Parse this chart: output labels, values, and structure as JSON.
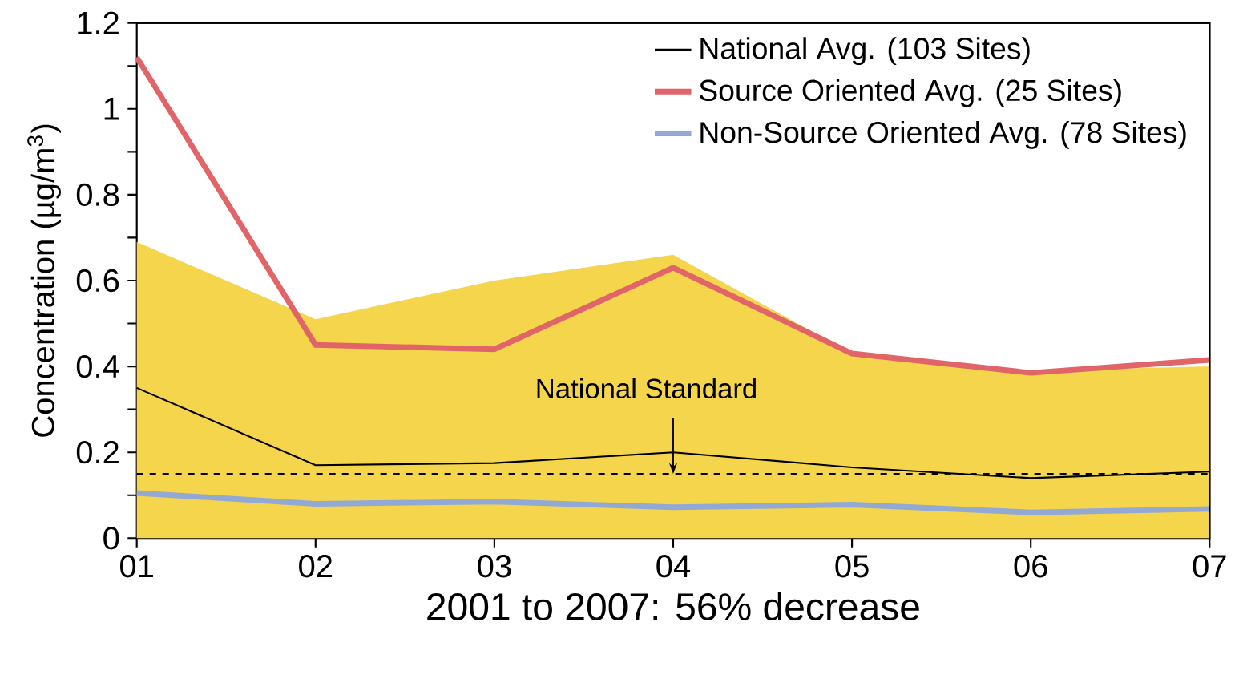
{
  "chart_data": {
    "type": "line",
    "xlabel": "2001 to 2007: 56% decrease",
    "ylabel": "Concentration (µg/m$^{3}$)",
    "categories": [
      "01",
      "02",
      "03",
      "04",
      "05",
      "06",
      "07"
    ],
    "series": [
      {
        "type": "area",
        "color": "#f5d54c",
        "values": [
          0.69,
          0.51,
          0.6,
          0.66,
          0.43,
          0.39,
          0.4
        ]
      },
      {
        "name": "National Avg. (103 Sites)",
        "color": "#000000",
        "values": [
          0.35,
          0.17,
          0.175,
          0.2,
          0.165,
          0.14,
          0.155
        ]
      },
      {
        "name": "Source Oriented Avg. (25 Sites)",
        "color": "#e06468",
        "values": [
          1.12,
          0.45,
          0.44,
          0.63,
          0.43,
          0.385,
          0.415
        ]
      },
      {
        "name": "Non-Source Oriented Avg. (78 Sites)",
        "color": "#92a9d6",
        "values": [
          0.105,
          0.08,
          0.085,
          0.072,
          0.078,
          0.06,
          0.068
        ]
      }
    ],
    "ylim": [
      0,
      1.2
    ],
    "yticks": [
      0,
      {
        "value": 0.1,
        "label": null
      },
      0.2,
      {
        "value": 0.3,
        "label": null
      },
      0.4,
      {
        "value": 0.5,
        "label": null
      },
      0.6,
      {
        "value": 0.7,
        "label": null
      },
      0.8,
      {
        "value": 0.9,
        "label": null
      },
      1,
      {
        "value": 1.1,
        "label": null
      },
      1.2
    ],
    "ref_lines": [
      {
        "axis": "y",
        "value": 0.15,
        "label": "National Standard",
        "color": "#000000",
        "line_style": "dashed"
      }
    ],
    "legend": "top right",
    "grid": false,
    "marker": "none",
    "line_style": "solid"
  }
}
